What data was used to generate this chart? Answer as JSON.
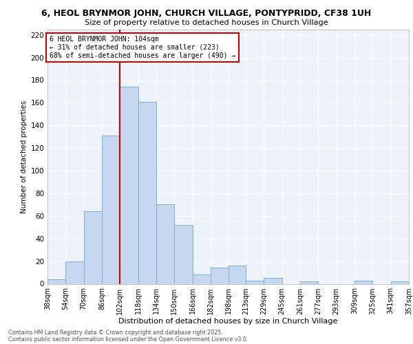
{
  "title1": "6, HEOL BRYNMOR JOHN, CHURCH VILLAGE, PONTYPRIDD, CF38 1UH",
  "title2": "Size of property relative to detached houses in Church Village",
  "xlabel": "Distribution of detached houses by size in Church Village",
  "ylabel": "Number of detached properties",
  "bar_color": "#c5d8f0",
  "bar_edge_color": "#7badd4",
  "background_color": "#eef2fb",
  "grid_color": "#ffffff",
  "bins": [
    38,
    54,
    70,
    86,
    102,
    118,
    134,
    150,
    166,
    182,
    198,
    213,
    229,
    245,
    261,
    277,
    293,
    309,
    325,
    341,
    357
  ],
  "counts": [
    4,
    20,
    64,
    131,
    174,
    161,
    70,
    52,
    8,
    14,
    16,
    3,
    5,
    0,
    2,
    0,
    0,
    3,
    0,
    2
  ],
  "vline_x": 102,
  "vline_color": "#cc0000",
  "annotation_line1": "6 HEOL BRYNMOR JOHN: 104sqm",
  "annotation_line2": "← 31% of detached houses are smaller (223)",
  "annotation_line3": "68% of semi-detached houses are larger (490) →",
  "annotation_box_color": "#ffffff",
  "annotation_box_edge": "#cc0000",
  "ylim": [
    0,
    225
  ],
  "yticks": [
    0,
    20,
    40,
    60,
    80,
    100,
    120,
    140,
    160,
    180,
    200,
    220
  ],
  "footer1": "Contains HM Land Registry data © Crown copyright and database right 2025.",
  "footer2": "Contains public sector information licensed under the Open Government Licence v3.0."
}
